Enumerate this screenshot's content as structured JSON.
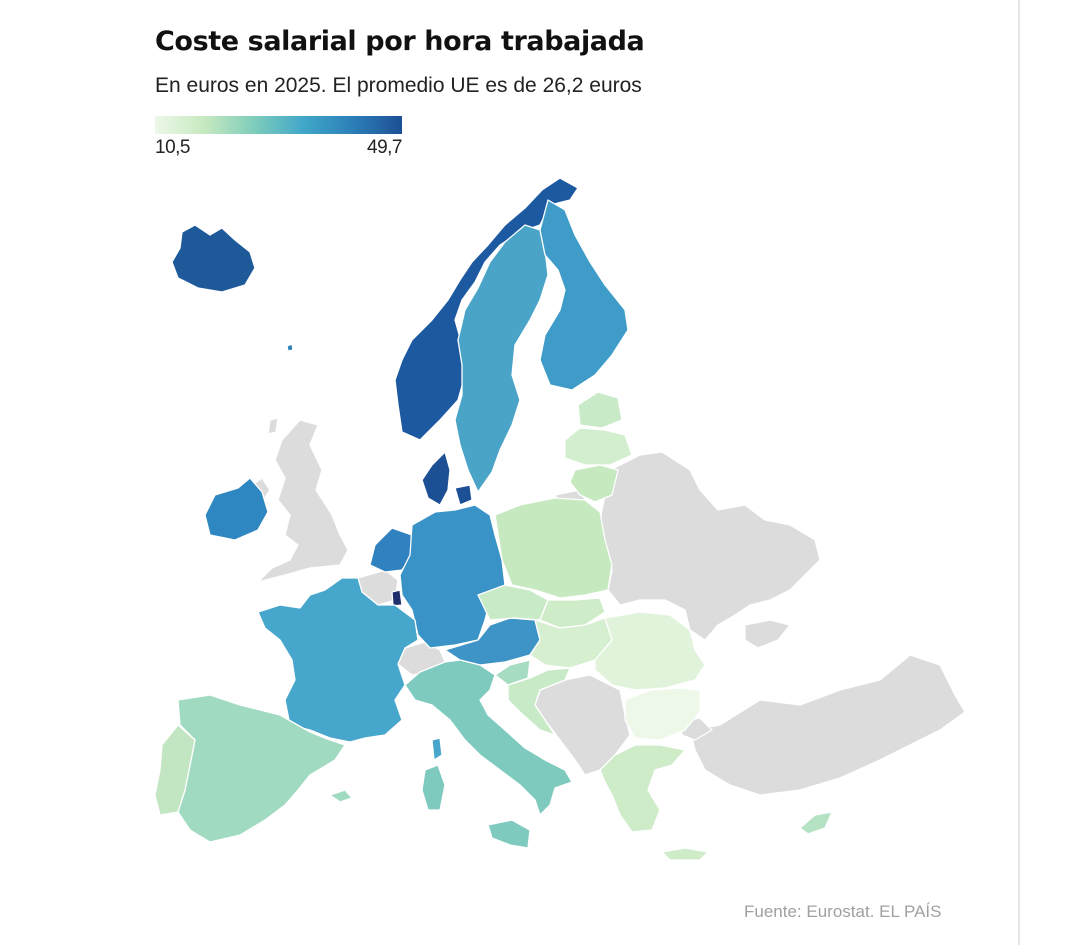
{
  "header": {
    "title": "Coste salarial por hora trabajada",
    "subtitle": "En euros en 2025. El promedio UE es de 26,2 euros"
  },
  "legend": {
    "min_label": "10,5",
    "max_label": "49,7",
    "min_value": 10.5,
    "max_value": 49.7,
    "colors": [
      "#edf8e9",
      "#c7e9c0",
      "#7fcdbb",
      "#41a7c9",
      "#2c7fb8",
      "#1d4f95"
    ]
  },
  "map": {
    "no_data_color": "#dcdcdc",
    "regions": [
      {
        "id": "uk",
        "name": "UK",
        "has_data": false
      },
      {
        "id": "switzerland",
        "name": "Suiza",
        "has_data": false
      },
      {
        "id": "eastern",
        "name": "Este",
        "has_data": false
      },
      {
        "id": "balkans",
        "name": "Balcanes",
        "has_data": false
      },
      {
        "id": "turkey",
        "name": "Turquía",
        "has_data": false
      },
      {
        "id": "iceland",
        "name": "Islandia",
        "has_data": true
      },
      {
        "id": "norway",
        "name": "Noruega",
        "has_data": true
      },
      {
        "id": "sweden",
        "name": "Suecia",
        "has_data": true
      },
      {
        "id": "finland",
        "name": "Finlandia",
        "has_data": true
      },
      {
        "id": "denmark",
        "name": "Dinamarca",
        "has_data": true
      },
      {
        "id": "ireland",
        "name": "Irlanda",
        "has_data": true
      },
      {
        "id": "netherlands",
        "name": "Países Bajos",
        "has_data": true
      },
      {
        "id": "luxembourg",
        "name": "Luxemburgo",
        "has_data": true
      },
      {
        "id": "germany",
        "name": "Alemania",
        "has_data": true
      },
      {
        "id": "france",
        "name": "Francia",
        "has_data": true
      },
      {
        "id": "austria",
        "name": "Austria",
        "has_data": true
      },
      {
        "id": "italy",
        "name": "Italia",
        "has_data": true
      },
      {
        "id": "spain",
        "name": "España",
        "has_data": true
      },
      {
        "id": "portugal",
        "name": "Portugal",
        "has_data": true
      },
      {
        "id": "estonia",
        "name": "Estonia",
        "has_data": true
      },
      {
        "id": "latvia",
        "name": "Letonia",
        "has_data": true
      },
      {
        "id": "lithuania",
        "name": "Lituania",
        "has_data": true
      },
      {
        "id": "poland",
        "name": "Polonia",
        "has_data": true
      },
      {
        "id": "czechia",
        "name": "Chequia",
        "has_data": true
      },
      {
        "id": "slovakia",
        "name": "Eslovaquia",
        "has_data": true
      },
      {
        "id": "hungary",
        "name": "Hungría",
        "has_data": true
      },
      {
        "id": "slovenia",
        "name": "Eslovenia",
        "has_data": true
      },
      {
        "id": "croatia",
        "name": "Croacia",
        "has_data": true
      },
      {
        "id": "romania",
        "name": "Rumanía",
        "has_data": true
      },
      {
        "id": "bulgaria",
        "name": "Bulgaria",
        "has_data": true
      },
      {
        "id": "greece",
        "name": "Grecia",
        "has_data": true
      },
      {
        "id": "cyprus",
        "name": "Chipre",
        "has_data": true
      }
    ]
  },
  "footer": {
    "source": "Fuente: Eurostat. EL PAÍS"
  }
}
